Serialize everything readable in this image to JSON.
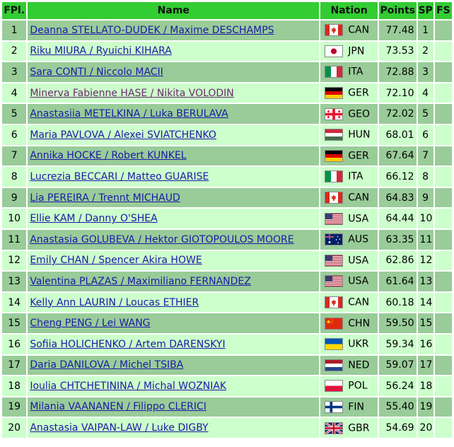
{
  "headers": {
    "fpl": "FPl.",
    "name": "Name",
    "nation": "Nation",
    "points": "Points",
    "sp": "SP",
    "fs": "FS"
  },
  "rows": [
    {
      "fpl": "1",
      "name": "Deanna STELLATO-DUDEK / Maxime DESCHAMPS",
      "flag": "ca-flag-icon",
      "code": "CAN",
      "points": "77.48",
      "sp": "1",
      "fs": "",
      "visited": false
    },
    {
      "fpl": "2",
      "name": "Riku MIURA / Ryuichi KIHARA",
      "flag": "jp-flag-icon",
      "code": "JPN",
      "points": "73.53",
      "sp": "2",
      "fs": "",
      "visited": false
    },
    {
      "fpl": "3",
      "name": "Sara CONTI / Niccolo MACII",
      "flag": "it-flag-icon",
      "code": "ITA",
      "points": "72.88",
      "sp": "3",
      "fs": "",
      "visited": false
    },
    {
      "fpl": "4",
      "name": "Minerva Fabienne HASE / Nikita VOLODIN",
      "flag": "de-flag-icon",
      "code": "GER",
      "points": "72.10",
      "sp": "4",
      "fs": "",
      "visited": true
    },
    {
      "fpl": "5",
      "name": "Anastasiia METELKINA / Luka BERULAVA",
      "flag": "ge-flag-icon",
      "code": "GEO",
      "points": "72.02",
      "sp": "5",
      "fs": "",
      "visited": false
    },
    {
      "fpl": "6",
      "name": "Maria PAVLOVA / Alexei SVIATCHENKO",
      "flag": "hu-flag-icon",
      "code": "HUN",
      "points": "68.01",
      "sp": "6",
      "fs": "",
      "visited": false
    },
    {
      "fpl": "7",
      "name": "Annika HOCKE / Robert KUNKEL",
      "flag": "de-flag-icon",
      "code": "GER",
      "points": "67.64",
      "sp": "7",
      "fs": "",
      "visited": false
    },
    {
      "fpl": "8",
      "name": "Lucrezia BECCARI / Matteo GUARISE",
      "flag": "it-flag-icon",
      "code": "ITA",
      "points": "66.12",
      "sp": "8",
      "fs": "",
      "visited": false
    },
    {
      "fpl": "9",
      "name": "Lia PEREIRA / Trennt MICHAUD",
      "flag": "ca-flag-icon",
      "code": "CAN",
      "points": "64.83",
      "sp": "9",
      "fs": "",
      "visited": false
    },
    {
      "fpl": "10",
      "name": "Ellie KAM / Danny O'SHEA",
      "flag": "us-flag-icon",
      "code": "USA",
      "points": "64.44",
      "sp": "10",
      "fs": "",
      "visited": false
    },
    {
      "fpl": "11",
      "name": "Anastasia GOLUBEVA / Hektor GIOTOPOULOS MOORE",
      "flag": "au-flag-icon",
      "code": "AUS",
      "points": "63.35",
      "sp": "11",
      "fs": "",
      "visited": false
    },
    {
      "fpl": "12",
      "name": "Emily CHAN / Spencer Akira HOWE",
      "flag": "us-flag-icon",
      "code": "USA",
      "points": "62.86",
      "sp": "12",
      "fs": "",
      "visited": false
    },
    {
      "fpl": "13",
      "name": "Valentina PLAZAS / Maximiliano FERNANDEZ",
      "flag": "us-flag-icon",
      "code": "USA",
      "points": "61.64",
      "sp": "13",
      "fs": "",
      "visited": false
    },
    {
      "fpl": "14",
      "name": "Kelly Ann LAURIN / Loucas ETHIER",
      "flag": "ca-flag-icon",
      "code": "CAN",
      "points": "60.18",
      "sp": "14",
      "fs": "",
      "visited": false
    },
    {
      "fpl": "15",
      "name": "Cheng PENG / Lei WANG",
      "flag": "cn-flag-icon",
      "code": "CHN",
      "points": "59.50",
      "sp": "15",
      "fs": "",
      "visited": false
    },
    {
      "fpl": "16",
      "name": "Sofiia HOLICHENKO / Artem DARENSKYI",
      "flag": "ua-flag-icon",
      "code": "UKR",
      "points": "59.34",
      "sp": "16",
      "fs": "",
      "visited": false
    },
    {
      "fpl": "17",
      "name": "Daria DANILOVA / Michel TSIBA",
      "flag": "nl-flag-icon",
      "code": "NED",
      "points": "59.07",
      "sp": "17",
      "fs": "",
      "visited": false
    },
    {
      "fpl": "18",
      "name": "Ioulia CHTCHETININA / Michal WOZNIAK",
      "flag": "pl-flag-icon",
      "code": "POL",
      "points": "56.24",
      "sp": "18",
      "fs": "",
      "visited": false
    },
    {
      "fpl": "19",
      "name": "Milania VAANANEN / Filippo CLERICI",
      "flag": "fi-flag-icon",
      "code": "FIN",
      "points": "55.40",
      "sp": "19",
      "fs": "",
      "visited": false
    },
    {
      "fpl": "20",
      "name": "Anastasia VAIPAN-LAW / Luke DIGBY",
      "flag": "gb-flag-icon",
      "code": "GBR",
      "points": "54.69",
      "sp": "20",
      "fs": "",
      "visited": false
    }
  ],
  "colors": {
    "header_bg": "#33cc33",
    "row_even": "#99cc99",
    "row_odd": "#ccffcc",
    "link": "#1a1aa6",
    "link_visited": "#6b2a6b"
  }
}
